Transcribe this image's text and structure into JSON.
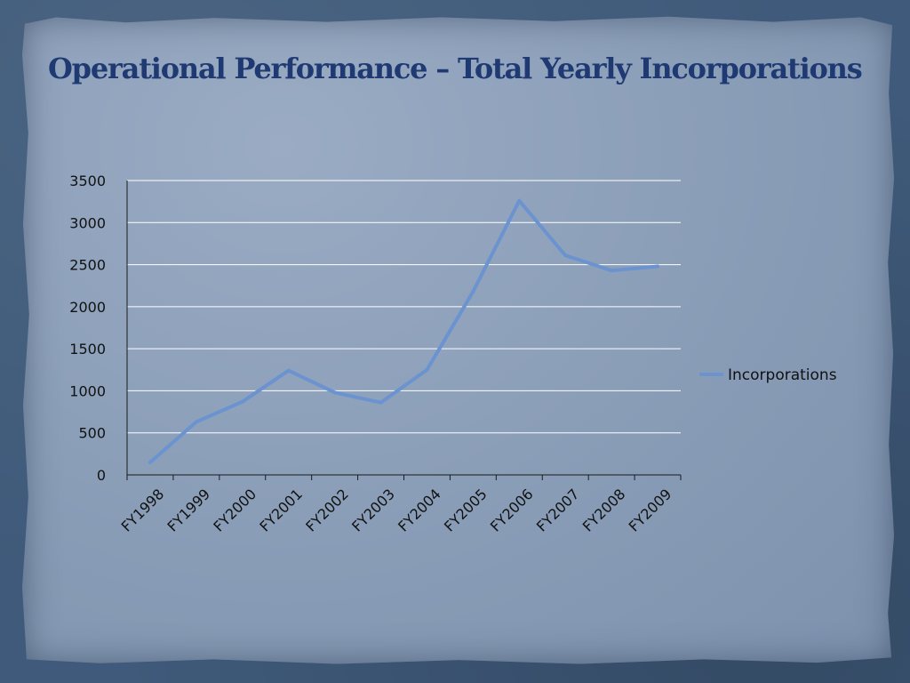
{
  "slide": {
    "title": "Operational Performance – Total Yearly Incorporations"
  },
  "chart_data": {
    "type": "line",
    "title": "",
    "xlabel": "",
    "ylabel": "",
    "categories": [
      "FY1998",
      "FY1999",
      "FY2000",
      "FY2001",
      "FY2002",
      "FY2003",
      "FY2004",
      "FY2005",
      "FY2006",
      "FY2007",
      "FY2008",
      "FY2009"
    ],
    "series": [
      {
        "name": "Incorporations",
        "color": "#6b93d0",
        "values": [
          150,
          630,
          870,
          1240,
          980,
          860,
          1250,
          2180,
          3260,
          2610,
          2430,
          2480
        ]
      }
    ],
    "ylim": [
      0,
      3500
    ],
    "yticks": [
      0,
      500,
      1000,
      1500,
      2000,
      2500,
      3000,
      3500
    ],
    "grid": true,
    "legend": "right",
    "gridline_color": "#ffffff"
  }
}
